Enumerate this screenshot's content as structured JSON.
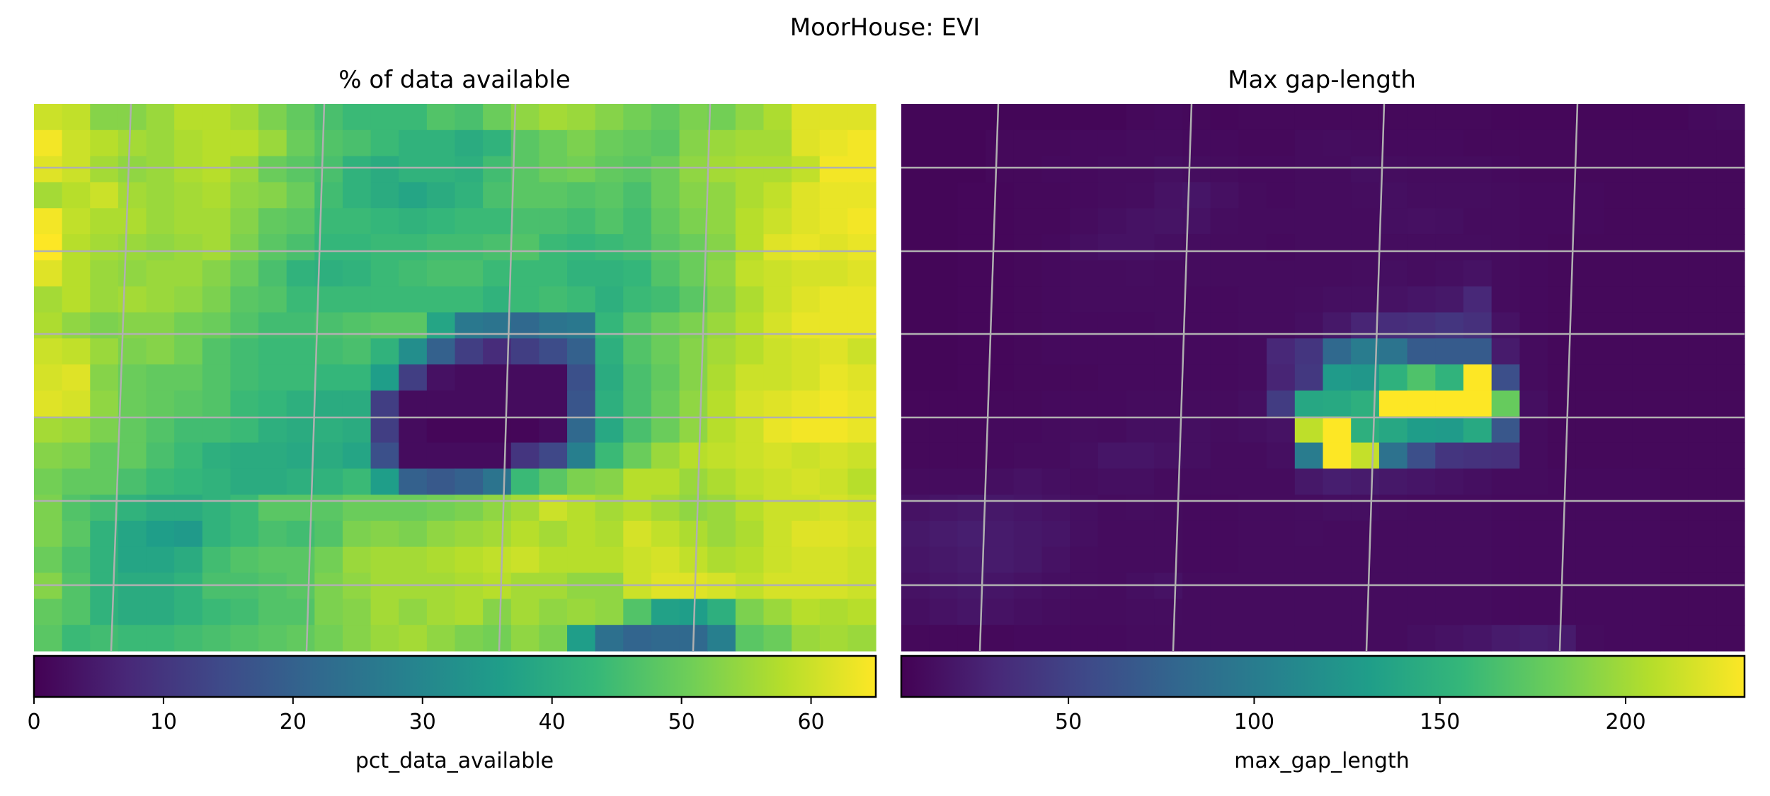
{
  "figure": {
    "suptitle": "MoorHouse: EVI"
  },
  "colormap": [
    "#440154",
    "#482878",
    "#3e4a89",
    "#31688e",
    "#26828e",
    "#1f9e89",
    "#35b779",
    "#6ece58",
    "#b5de2b",
    "#fde725"
  ],
  "gridline_color": "#b0b0b0",
  "chart_data": [
    {
      "type": "heatmap",
      "title": "% of data available",
      "colorbar_label": "pct_data_available",
      "vmin": 0,
      "vmax": 65,
      "colorbar_ticks": [
        0,
        10,
        20,
        30,
        40,
        50,
        60
      ],
      "grid": true,
      "values": [
        [
          60,
          59,
          53,
          53,
          55,
          58,
          58,
          56,
          52,
          49,
          46,
          44,
          44,
          44,
          47,
          46,
          50,
          54,
          56,
          55,
          53,
          51,
          49,
          52,
          51,
          54,
          57,
          62,
          62,
          62
        ],
        [
          64,
          60,
          58,
          56,
          55,
          57,
          58,
          58,
          55,
          50,
          47,
          46,
          44,
          42,
          42,
          40,
          42,
          48,
          50,
          52,
          50,
          49,
          48,
          53,
          55,
          56,
          56,
          62,
          63,
          64
        ],
        [
          62,
          60,
          56,
          54,
          55,
          57,
          58,
          55,
          50,
          48,
          46,
          42,
          40,
          42,
          42,
          41,
          45,
          48,
          50,
          51,
          49,
          48,
          50,
          54,
          56,
          57,
          57,
          59,
          64,
          64
        ],
        [
          56,
          58,
          60,
          56,
          55,
          56,
          57,
          54,
          53,
          50,
          45,
          42,
          40,
          38,
          40,
          42,
          46,
          48,
          48,
          47,
          48,
          46,
          50,
          53,
          54,
          57,
          59,
          62,
          63,
          63
        ],
        [
          64,
          59,
          57,
          57,
          55,
          56,
          56,
          53,
          49,
          48,
          44,
          44,
          43,
          42,
          43,
          44,
          44,
          46,
          46,
          45,
          47,
          45,
          49,
          52,
          54,
          58,
          60,
          62,
          63,
          64
        ],
        [
          65,
          58,
          56,
          55,
          54,
          55,
          56,
          52,
          48,
          46,
          43,
          43,
          44,
          44,
          45,
          45,
          46,
          47,
          44,
          43,
          44,
          45,
          48,
          50,
          53,
          58,
          62,
          63,
          62,
          63
        ],
        [
          62,
          58,
          55,
          54,
          55,
          55,
          53,
          50,
          46,
          42,
          41,
          42,
          44,
          45,
          46,
          46,
          44,
          44,
          44,
          42,
          42,
          43,
          47,
          50,
          54,
          59,
          60,
          61,
          61,
          62
        ],
        [
          56,
          58,
          55,
          56,
          55,
          54,
          52,
          48,
          47,
          44,
          44,
          44,
          44,
          44,
          44,
          44,
          42,
          44,
          45,
          44,
          41,
          44,
          45,
          48,
          53,
          57,
          60,
          62,
          63,
          63
        ],
        [
          57,
          54,
          52,
          53,
          53,
          51,
          50,
          47,
          45,
          45,
          46,
          47,
          48,
          48,
          38,
          26,
          25,
          22,
          25,
          26,
          43,
          47,
          50,
          52,
          55,
          58,
          61,
          63,
          63,
          63
        ],
        [
          60,
          59,
          55,
          52,
          53,
          51,
          47,
          45,
          44,
          44,
          45,
          46,
          42,
          32,
          20,
          12,
          8,
          12,
          15,
          20,
          41,
          47,
          50,
          53,
          56,
          58,
          60,
          61,
          62,
          60
        ],
        [
          61,
          62,
          53,
          50,
          49,
          49,
          47,
          45,
          44,
          44,
          43,
          43,
          36,
          12,
          3,
          2,
          2,
          2,
          2,
          16,
          40,
          46,
          49,
          53,
          57,
          60,
          60,
          61,
          63,
          62
        ],
        [
          62,
          61,
          54,
          50,
          49,
          48,
          47,
          44,
          43,
          41,
          40,
          40,
          12,
          2,
          2,
          2,
          2,
          2,
          2,
          17,
          41,
          46,
          50,
          54,
          58,
          61,
          62,
          63,
          64,
          63
        ],
        [
          56,
          55,
          52,
          49,
          47,
          45,
          45,
          44,
          41,
          40,
          41,
          40,
          12,
          2,
          1,
          1,
          1,
          1,
          2,
          22,
          39,
          46,
          50,
          54,
          58,
          60,
          63,
          64,
          64,
          63
        ],
        [
          53,
          52,
          49,
          49,
          46,
          44,
          41,
          40,
          40,
          39,
          40,
          38,
          16,
          2,
          2,
          2,
          2,
          10,
          14,
          28,
          44,
          50,
          55,
          58,
          59,
          60,
          61,
          60,
          61,
          60
        ],
        [
          51,
          49,
          49,
          46,
          44,
          43,
          42,
          40,
          40,
          41,
          42,
          44,
          36,
          20,
          18,
          20,
          25,
          44,
          48,
          52,
          53,
          58,
          58,
          55,
          57,
          59,
          60,
          61,
          60,
          58
        ],
        [
          52,
          47,
          45,
          42,
          40,
          40,
          42,
          44,
          48,
          48,
          48,
          50,
          50,
          50,
          51,
          52,
          54,
          56,
          60,
          58,
          56,
          58,
          56,
          54,
          55,
          58,
          60,
          60,
          61,
          60
        ],
        [
          52,
          48,
          42,
          38,
          36,
          35,
          42,
          44,
          46,
          45,
          47,
          52,
          53,
          52,
          54,
          55,
          56,
          58,
          56,
          58,
          57,
          61,
          59,
          57,
          55,
          57,
          60,
          62,
          62,
          61
        ],
        [
          50,
          46,
          42,
          38,
          38,
          40,
          45,
          47,
          48,
          48,
          51,
          55,
          56,
          56,
          57,
          58,
          59,
          60,
          58,
          58,
          58,
          60,
          61,
          59,
          57,
          58,
          60,
          61,
          61,
          60
        ],
        [
          53,
          47,
          42,
          40,
          40,
          42,
          46,
          46,
          47,
          48,
          52,
          54,
          56,
          56,
          56,
          57,
          58,
          56,
          56,
          54,
          54,
          60,
          62,
          62,
          61,
          59,
          61,
          61,
          61,
          60
        ],
        [
          49,
          47,
          42,
          40,
          40,
          42,
          44,
          45,
          47,
          47,
          52,
          53,
          56,
          54,
          56,
          57,
          53,
          56,
          54,
          55,
          54,
          47,
          37,
          36,
          41,
          52,
          55,
          58,
          57,
          58
        ],
        [
          48,
          44,
          45,
          44,
          44,
          45,
          46,
          47,
          48,
          49,
          51,
          53,
          55,
          56,
          54,
          52,
          51,
          54,
          52,
          36,
          24,
          21,
          22,
          22,
          28,
          48,
          50,
          55,
          56,
          55
        ]
      ]
    },
    {
      "type": "heatmap",
      "title": "Max gap-length",
      "colorbar_label": "max_gap_length",
      "vmin": 5,
      "vmax": 232,
      "colorbar_ticks": [
        50,
        100,
        150,
        200
      ],
      "grid": true,
      "values": [
        [
          8,
          8,
          8,
          8,
          8,
          8,
          8,
          8,
          10,
          11,
          10,
          9,
          10,
          10,
          10,
          10,
          10,
          10,
          10,
          10,
          10,
          9,
          9,
          9,
          9,
          9,
          9,
          9,
          11,
          12
        ],
        [
          8,
          8,
          8,
          10,
          10,
          10,
          11,
          11,
          12,
          12,
          11,
          11,
          10,
          10,
          12,
          13,
          12,
          11,
          11,
          11,
          10,
          10,
          10,
          10,
          10,
          10,
          10,
          10,
          10,
          10
        ],
        [
          8,
          8,
          8,
          10,
          10,
          11,
          11,
          12,
          12,
          14,
          13,
          12,
          11,
          11,
          12,
          12,
          14,
          13,
          12,
          12,
          12,
          11,
          10,
          10,
          10,
          10,
          10,
          10,
          10,
          10
        ],
        [
          8,
          8,
          9,
          9,
          10,
          10,
          11,
          12,
          13,
          16,
          18,
          15,
          12,
          11,
          12,
          12,
          13,
          14,
          13,
          13,
          13,
          12,
          11,
          11,
          11,
          10,
          10,
          10,
          10,
          10
        ],
        [
          8,
          8,
          9,
          9,
          10,
          10,
          12,
          14,
          16,
          17,
          16,
          13,
          12,
          12,
          12,
          12,
          12,
          14,
          15,
          14,
          12,
          12,
          11,
          11,
          11,
          10,
          10,
          10,
          10,
          10
        ],
        [
          8,
          8,
          9,
          9,
          10,
          11,
          14,
          16,
          16,
          14,
          13,
          12,
          12,
          11,
          12,
          12,
          12,
          13,
          13,
          13,
          13,
          12,
          11,
          10,
          10,
          10,
          10,
          10,
          10,
          10
        ],
        [
          8,
          8,
          9,
          9,
          10,
          11,
          12,
          12,
          13,
          12,
          12,
          12,
          12,
          12,
          12,
          12,
          13,
          14,
          13,
          14,
          16,
          12,
          11,
          10,
          10,
          10,
          10,
          10,
          10,
          10
        ],
        [
          8,
          8,
          9,
          9,
          10,
          11,
          12,
          12,
          12,
          12,
          11,
          11,
          12,
          12,
          13,
          14,
          14,
          16,
          18,
          20,
          30,
          12,
          11,
          10,
          10,
          10,
          10,
          10,
          10,
          10
        ],
        [
          8,
          8,
          9,
          9,
          10,
          11,
          11,
          11,
          11,
          12,
          11,
          11,
          12,
          12,
          14,
          20,
          28,
          34,
          36,
          40,
          36,
          16,
          11,
          10,
          10,
          10,
          10,
          10,
          10,
          10
        ],
        [
          8,
          8,
          9,
          9,
          10,
          11,
          11,
          11,
          11,
          11,
          11,
          11,
          12,
          30,
          40,
          82,
          100,
          92,
          70,
          70,
          70,
          22,
          12,
          10,
          10,
          10,
          10,
          10,
          10,
          10
        ],
        [
          8,
          8,
          9,
          9,
          10,
          10,
          10,
          11,
          11,
          11,
          11,
          11,
          12,
          28,
          42,
          128,
          125,
          150,
          168,
          152,
          232,
          60,
          12,
          10,
          10,
          10,
          10,
          10,
          10,
          10
        ],
        [
          9,
          9,
          9,
          10,
          10,
          11,
          11,
          11,
          12,
          12,
          12,
          12,
          14,
          45,
          140,
          142,
          148,
          232,
          232,
          232,
          232,
          178,
          14,
          10,
          10,
          10,
          10,
          10,
          10,
          10
        ],
        [
          10,
          10,
          10,
          11,
          11,
          12,
          13,
          12,
          14,
          14,
          14,
          13,
          14,
          16,
          210,
          232,
          148,
          140,
          130,
          128,
          142,
          66,
          12,
          10,
          10,
          10,
          10,
          10,
          10,
          10
        ],
        [
          10,
          10,
          10,
          11,
          12,
          12,
          14,
          18,
          18,
          16,
          14,
          12,
          12,
          14,
          100,
          232,
          212,
          90,
          60,
          40,
          38,
          36,
          12,
          10,
          10,
          10,
          10,
          10,
          10,
          10
        ],
        [
          12,
          12,
          12,
          14,
          16,
          14,
          13,
          14,
          14,
          12,
          12,
          12,
          12,
          12,
          20,
          24,
          22,
          20,
          18,
          16,
          14,
          12,
          12,
          11,
          11,
          11,
          11,
          10,
          10,
          10
        ],
        [
          16,
          18,
          20,
          20,
          18,
          16,
          14,
          12,
          13,
          12,
          11,
          11,
          12,
          12,
          13,
          14,
          14,
          13,
          12,
          12,
          12,
          11,
          11,
          11,
          11,
          11,
          11,
          10,
          10,
          10
        ],
        [
          20,
          22,
          24,
          22,
          20,
          18,
          14,
          12,
          12,
          12,
          11,
          11,
          12,
          12,
          13,
          12,
          12,
          12,
          12,
          12,
          12,
          11,
          11,
          11,
          11,
          11,
          11,
          10,
          10,
          10
        ],
        [
          18,
          20,
          22,
          22,
          20,
          16,
          13,
          12,
          12,
          12,
          11,
          11,
          12,
          12,
          12,
          12,
          12,
          12,
          12,
          12,
          12,
          11,
          11,
          11,
          11,
          11,
          11,
          10,
          10,
          10
        ],
        [
          16,
          18,
          20,
          18,
          16,
          14,
          13,
          12,
          14,
          16,
          12,
          12,
          12,
          12,
          12,
          12,
          12,
          12,
          12,
          12,
          12,
          11,
          11,
          11,
          11,
          11,
          11,
          10,
          10,
          10
        ],
        [
          14,
          16,
          18,
          16,
          14,
          13,
          12,
          12,
          13,
          13,
          12,
          12,
          12,
          12,
          12,
          12,
          12,
          12,
          12,
          12,
          12,
          11,
          11,
          11,
          11,
          11,
          11,
          10,
          10,
          10
        ],
        [
          10,
          10,
          10,
          10,
          11,
          11,
          11,
          11,
          12,
          12,
          12,
          12,
          12,
          12,
          12,
          12,
          12,
          12,
          14,
          16,
          18,
          22,
          24,
          22,
          12,
          11,
          11,
          10,
          10,
          10
        ]
      ]
    }
  ]
}
